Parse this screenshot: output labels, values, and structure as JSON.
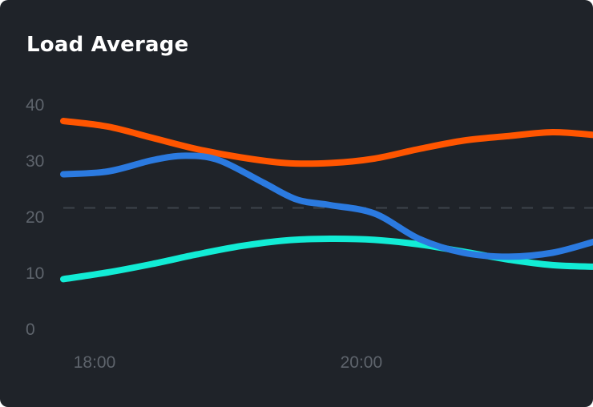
{
  "card": {
    "title": "Load Average"
  },
  "chart_data": {
    "type": "line",
    "title": "Load Average",
    "xlabel": "",
    "ylabel": "",
    "ylim": [
      0,
      40
    ],
    "yticks": [
      "0",
      "10",
      "20",
      "30",
      "40"
    ],
    "xticks": [
      {
        "label": "18:00",
        "x": 0
      },
      {
        "label": "20:00",
        "x": 120
      }
    ],
    "xlim": [
      0,
      239
    ],
    "reference_line": {
      "y": 21.5,
      "style": "dashed"
    },
    "grid": false,
    "legend": "none",
    "series": [
      {
        "color": "#ff5500",
        "x": [
          0,
          20,
          40,
          60,
          80,
          100,
          120,
          140,
          160,
          180,
          200,
          220,
          239
        ],
        "values": [
          37,
          36,
          34,
          32,
          30.5,
          29.5,
          29.5,
          30.3,
          32,
          33.5,
          34.3,
          35,
          34.5
        ]
      },
      {
        "color": "#2b7ae0",
        "x": [
          0,
          20,
          40,
          55,
          70,
          90,
          105,
          120,
          140,
          160,
          180,
          200,
          220,
          239
        ],
        "values": [
          27.5,
          28,
          30,
          30.8,
          30,
          26,
          23,
          22,
          20.5,
          16,
          13.5,
          12.8,
          13.5,
          15.5
        ]
      },
      {
        "color": "#12ecd5",
        "x": [
          0,
          20,
          40,
          60,
          80,
          100,
          120,
          140,
          160,
          180,
          200,
          220,
          239
        ],
        "values": [
          8.8,
          10,
          11.5,
          13.2,
          14.7,
          15.7,
          16,
          15.8,
          15,
          13.7,
          12.3,
          11.3,
          11
        ]
      }
    ]
  }
}
